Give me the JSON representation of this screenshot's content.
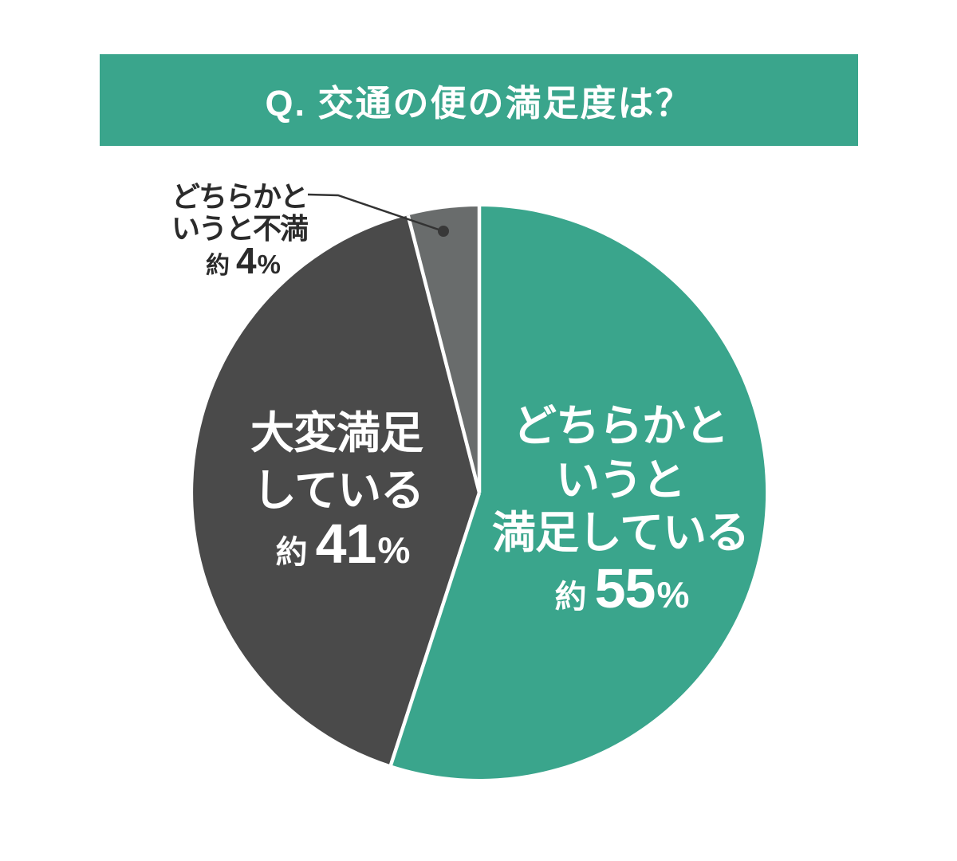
{
  "header": {
    "title": "Q. 交通の便の満足度は？",
    "bg_color": "#3AA58C",
    "text_color": "#FFFFFF"
  },
  "chart_data": {
    "type": "pie",
    "title": "Q. 交通の便の満足度は？",
    "categories": [
      "どちらかというと満足している",
      "大変満足している",
      "どちらかというと不満"
    ],
    "values": [
      55,
      41,
      4
    ],
    "unit": "%",
    "approx_prefix": "約",
    "percent_sign": "%",
    "start_angle_deg": 0,
    "direction": "clockwise",
    "legend": "none",
    "separator_color": "#FFFFFF",
    "slices": [
      {
        "label": "どちらかというと満足している",
        "label_lines": [
          "どちらかと",
          "いうと",
          "満足している"
        ],
        "value": 55,
        "color": "#3AA58C",
        "label_color": "#FFFFFF",
        "label_placement": "inside"
      },
      {
        "label": "大変満足している",
        "label_lines": [
          "大変満足",
          "している"
        ],
        "value": 41,
        "color": "#4A4A4A",
        "label_color": "#FFFFFF",
        "label_placement": "inside"
      },
      {
        "label": "どちらかというと不満",
        "label_lines": [
          "どちらかと",
          "いうと不満"
        ],
        "value": 4,
        "color": "#696C6C",
        "label_color": "#2B2B2B",
        "label_placement": "callout"
      }
    ]
  }
}
